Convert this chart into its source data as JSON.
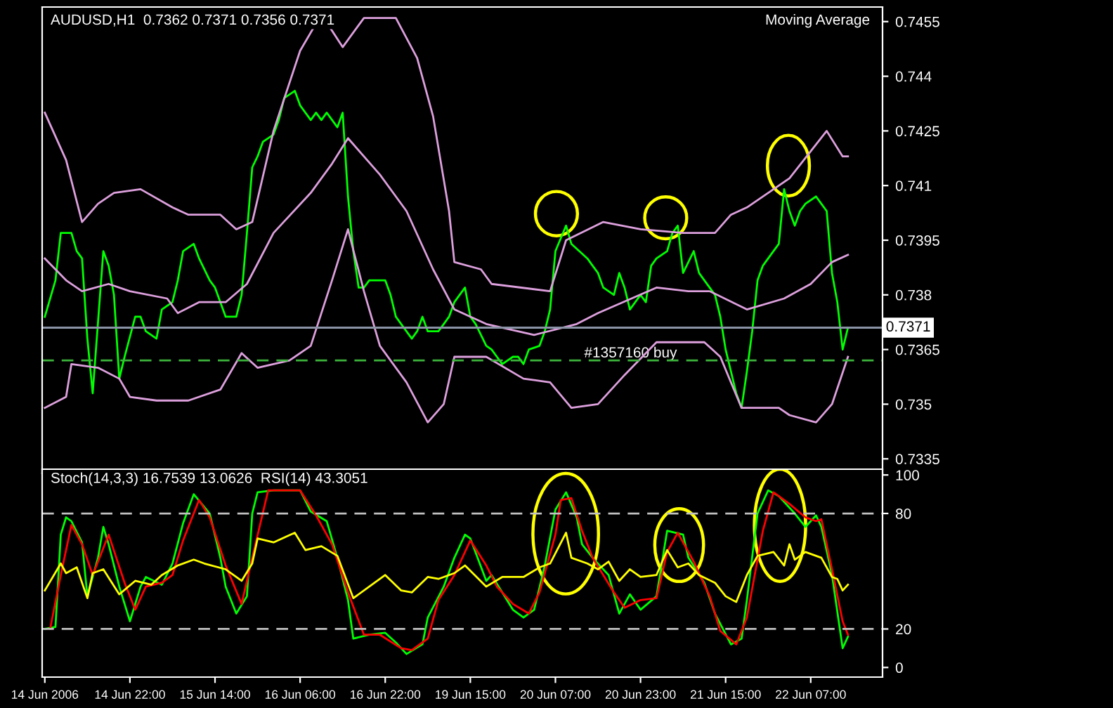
{
  "chart_data": [
    {
      "type": "line",
      "title": "AUDUSD,H1  0.7362 0.7371 0.7356 0.7371",
      "annotations": [
        "Moving Average"
      ],
      "ylim": [
        0.7331,
        0.7459
      ],
      "yticks": [
        0.7335,
        0.735,
        0.7365,
        0.738,
        0.7395,
        0.741,
        0.7425,
        0.744,
        0.7455
      ],
      "tick_labels": "y",
      "grid": false,
      "legend": false,
      "ref_lines": [
        {
          "axis": "y",
          "value": 0.7371,
          "label": "0.7371",
          "color": "#8a94a6",
          "line_style": "solid"
        },
        {
          "axis": "y",
          "value": 0.7362,
          "label": "#1357160 buy",
          "color": "#3cb43c",
          "line_style": "dashed"
        }
      ],
      "series": [
        {
          "color": "#00ff00",
          "values": [
            0.7374,
            null,
            0.7384,
            0.7397,
            null,
            0.7397,
            0.7392,
            0.739,
            0.7368,
            0.7353,
            null,
            0.7392,
            0.7388,
            0.738,
            0.7357,
            0.7363,
            null,
            0.7374,
            0.7374,
            0.737,
            null,
            0.7368,
            0.7376,
            null,
            0.7378,
            0.7384,
            0.7392,
            null,
            0.7394,
            0.739,
            null,
            0.7384,
            0.7382,
            0.7378,
            0.7374,
            null,
            0.7374,
            0.738,
            0.7397,
            0.7415,
            0.7418,
            0.7422,
            null,
            0.7424,
            0.7428,
            0.7434,
            null,
            0.7436,
            0.7432,
            null,
            0.7428,
            0.743,
            0.7428,
            0.743,
            null,
            0.7426,
            0.743,
            0.7407,
            0.7392,
            0.7382,
            0.7382,
            0.7384,
            0.7384,
            null,
            0.7384,
            0.738,
            0.7374,
            0.7372,
            null,
            0.7368,
            0.737,
            0.7374,
            0.737,
            null,
            0.737,
            0.7372,
            0.7374,
            0.7378,
            null,
            0.7382,
            0.7374,
            0.7372,
            null,
            0.7366,
            0.7365,
            0.7363,
            0.7361,
            null,
            0.7363,
            0.7363,
            0.7361,
            0.7365,
            null,
            0.7366,
            0.737,
            0.7376,
            0.7392,
            null,
            0.7399,
            0.7394,
            null,
            null,
            0.739,
            0.7388,
            0.7386,
            0.7382,
            null,
            0.738,
            0.7386,
            0.7382,
            0.7376,
            null,
            0.738,
            0.7378,
            0.7388,
            0.739,
            null,
            0.7392,
            0.7397,
            0.7399,
            0.7386,
            null,
            0.7392,
            0.7386,
            0.7384,
            null,
            0.738,
            0.7374,
            0.7365,
            0.7359,
            0.7353,
            0.7349,
            0.7359,
            0.737,
            0.7384,
            0.7388,
            0.739,
            null,
            0.7394,
            0.7409,
            0.7403,
            0.7399,
            0.7403,
            0.7405,
            null,
            0.7407,
            0.7405,
            0.7403,
            0.7386,
            0.7378,
            0.7365,
            0.7371
          ]
        },
        {
          "color": "#dda0dd",
          "values": [
            0.743,
            null,
            null,
            null,
            0.7417,
            null,
            null,
            0.74,
            null,
            null,
            0.7405,
            null,
            null,
            0.7408,
            null,
            null,
            null,
            null,
            0.7409,
            null,
            null,
            null,
            null,
            null,
            0.7404,
            null,
            null,
            0.7402,
            null,
            null,
            null,
            null,
            null,
            0.7402,
            null,
            null,
            0.7398,
            null,
            null,
            0.74,
            null,
            null,
            null,
            0.7425,
            null,
            null,
            null,
            null,
            0.7447,
            null,
            null,
            null,
            0.7457,
            null,
            null,
            null,
            0.7448,
            null,
            null,
            null,
            0.7456,
            null,
            null,
            null,
            null,
            null,
            0.7456,
            null,
            null,
            null,
            0.7445,
            null,
            null,
            0.7429,
            null,
            null,
            0.7403,
            0.7389,
            null,
            null,
            null,
            null,
            0.7387,
            null,
            0.7383,
            null,
            null,
            null,
            null,
            null,
            null,
            null,
            null,
            null,
            null,
            0.7381,
            null,
            null,
            0.7395,
            null,
            null,
            null,
            null,
            null,
            null,
            0.74,
            null,
            null,
            null,
            null,
            null,
            null,
            0.7398,
            null,
            null,
            null,
            null,
            null,
            null,
            null,
            0.7397,
            null,
            null,
            null,
            null,
            null,
            0.7397,
            null,
            null,
            0.7402,
            null,
            null,
            0.7404,
            null,
            null,
            null,
            0.7408,
            null,
            null,
            null,
            0.7412,
            null,
            null,
            null,
            null,
            null,
            null,
            0.7425,
            null,
            null,
            0.7418,
            0.7418
          ]
        },
        {
          "color": "#dda0dd",
          "values": [
            0.739,
            null,
            null,
            null,
            0.7384,
            null,
            null,
            0.7381,
            null,
            null,
            null,
            null,
            0.7383,
            null,
            null,
            null,
            0.7381,
            null,
            null,
            null,
            null,
            null,
            null,
            0.7379,
            null,
            0.7375,
            null,
            null,
            null,
            0.7378,
            null,
            null,
            null,
            null,
            0.7378,
            null,
            null,
            null,
            0.7383,
            null,
            null,
            null,
            null,
            0.7397,
            null,
            null,
            null,
            null,
            null,
            null,
            0.7408,
            null,
            null,
            null,
            0.7416,
            null,
            null,
            0.7423,
            null,
            null,
            null,
            null,
            null,
            0.7413,
            null,
            null,
            null,
            null,
            0.7403,
            null,
            null,
            null,
            null,
            0.7387,
            null,
            null,
            null,
            0.7376,
            null,
            null,
            null,
            null,
            null,
            0.7372,
            null,
            null,
            null,
            null,
            null,
            null,
            null,
            null,
            0.7369,
            null,
            null,
            null,
            null,
            null,
            null,
            null,
            0.7372,
            null,
            null,
            null,
            0.7375,
            null,
            null,
            null,
            null,
            null,
            null,
            null,
            null,
            null,
            null,
            0.7382,
            null,
            null,
            null,
            null,
            null,
            0.7381,
            null,
            null,
            null,
            0.7381,
            null,
            null,
            null,
            null,
            null,
            null,
            0.7376,
            null,
            null,
            null,
            null,
            null,
            null,
            0.7379,
            null,
            null,
            null,
            null,
            0.7383,
            null,
            null,
            null,
            0.7389,
            null,
            null,
            0.7391
          ]
        },
        {
          "color": "#dda0dd",
          "values": [
            0.7349,
            null,
            null,
            null,
            0.7352,
            0.7361,
            null,
            null,
            null,
            null,
            0.736,
            null,
            null,
            null,
            0.7357,
            null,
            0.7352,
            null,
            null,
            null,
            null,
            0.7351,
            null,
            null,
            null,
            null,
            null,
            0.7351,
            null,
            null,
            null,
            null,
            null,
            0.7354,
            null,
            null,
            null,
            0.7364,
            null,
            null,
            0.736,
            null,
            null,
            null,
            null,
            null,
            0.7362,
            null,
            null,
            null,
            0.7366,
            null,
            null,
            null,
            0.7384,
            null,
            null,
            0.7398,
            null,
            null,
            0.7381,
            null,
            null,
            0.7366,
            null,
            null,
            null,
            null,
            0.7356,
            null,
            null,
            null,
            0.7345,
            null,
            null,
            0.735,
            null,
            0.7363,
            null,
            null,
            null,
            null,
            null,
            0.7363,
            null,
            null,
            null,
            null,
            null,
            null,
            0.7357,
            null,
            null,
            null,
            null,
            0.7356,
            null,
            null,
            null,
            0.7349,
            null,
            null,
            null,
            null,
            0.735,
            null,
            null,
            null,
            null,
            0.7358,
            null,
            null,
            null,
            null,
            null,
            0.7367,
            null,
            null,
            null,
            null,
            null,
            null,
            null,
            null,
            0.7367,
            null,
            null,
            0.7363,
            null,
            null,
            null,
            0.7349,
            null,
            null,
            null,
            null,
            null,
            null,
            0.7349,
            null,
            0.7347,
            null,
            null,
            null,
            null,
            0.7345,
            null,
            null,
            0.735,
            null,
            null,
            0.7363
          ]
        }
      ]
    },
    {
      "type": "line",
      "title": "Stoch(14,3,3) 16.7539 13.0626  RSI(14) 43.3051",
      "ylim": [
        -5,
        103
      ],
      "yticks": [
        0,
        20,
        80,
        100
      ],
      "grid": false,
      "legend": false,
      "categories": [
        "14 Jun 2006",
        null,
        null,
        null,
        null,
        null,
        null,
        null,
        null,
        null,
        null,
        null,
        null,
        null,
        null,
        null,
        "14 Jun 22:00",
        null,
        null,
        null,
        null,
        null,
        null,
        null,
        null,
        null,
        null,
        null,
        null,
        null,
        null,
        null,
        "15 Jun 14:00",
        null,
        null,
        null,
        null,
        null,
        null,
        null,
        null,
        null,
        null,
        null,
        null,
        null,
        null,
        null,
        "16 Jun 06:00",
        null,
        null,
        null,
        null,
        null,
        null,
        null,
        null,
        null,
        null,
        null,
        null,
        null,
        null,
        null,
        "16 Jun 22:00",
        null,
        null,
        null,
        null,
        null,
        null,
        null,
        null,
        null,
        null,
        null,
        null,
        null,
        null,
        null,
        "19 Jun 15:00",
        null,
        null,
        null,
        null,
        null,
        null,
        null,
        null,
        null,
        null,
        null,
        null,
        null,
        null,
        null,
        "20 Jun 07:00",
        null,
        null,
        null,
        null,
        null,
        null,
        null,
        null,
        null,
        null,
        null,
        null,
        null,
        null,
        null,
        "20 Jun 23:00",
        null,
        null,
        null,
        null,
        null,
        null,
        null,
        null,
        null,
        null,
        null,
        null,
        null,
        null,
        null,
        "21 Jun 15:00",
        null,
        null,
        null,
        null,
        null,
        null,
        null,
        null,
        null,
        null,
        null,
        null,
        null,
        null,
        null,
        "22 Jun 07:00",
        null,
        null,
        null,
        null,
        null,
        null,
        null
      ],
      "ref_lines": [
        {
          "axis": "y",
          "value": 80,
          "color": "#c0c0c0",
          "line_style": "dashed"
        },
        {
          "axis": "y",
          "value": 20,
          "color": "#c0c0c0",
          "line_style": "dashed"
        }
      ],
      "series": [
        {
          "color": "#00ff00",
          "values": [
            20,
            null,
            21,
            69,
            78,
            76,
            null,
            65,
            37,
            null,
            57,
            73,
            64,
            null,
            42,
            null,
            24,
            null,
            42,
            47,
            null,
            null,
            43,
            null,
            54,
            null,
            75,
            null,
            90,
            null,
            null,
            80,
            null,
            57,
            42,
            null,
            28,
            null,
            37,
            80,
            91,
            null,
            null,
            92,
            null,
            null,
            null,
            null,
            92,
            null,
            81,
            null,
            null,
            76,
            null,
            57,
            null,
            35,
            15,
            null,
            null,
            17,
            null,
            null,
            18,
            null,
            13,
            null,
            7,
            null,
            null,
            12,
            26,
            null,
            null,
            42,
            null,
            57,
            null,
            69,
            67,
            null,
            null,
            45,
            48,
            null,
            null,
            null,
            30,
            null,
            26,
            null,
            30,
            null,
            53,
            null,
            82,
            null,
            91,
            null,
            78,
            64,
            null,
            57,
            null,
            null,
            48,
            null,
            28,
            null,
            38,
            null,
            30,
            null,
            null,
            37,
            null,
            71,
            null,
            null,
            69,
            57,
            null,
            null,
            44,
            null,
            28,
            null,
            null,
            12,
            null,
            15,
            35,
            null,
            80,
            null,
            92,
            null,
            89,
            null,
            null,
            80,
            null,
            73,
            null,
            79,
            73,
            null,
            48,
            null,
            10,
            16
          ]
        },
        {
          "color": "#ff0000",
          "values": [
            null,
            20,
            null,
            48,
            null,
            74,
            null,
            64,
            null,
            48,
            null,
            null,
            69,
            null,
            null,
            44,
            null,
            30,
            null,
            42,
            null,
            null,
            44,
            null,
            48,
            null,
            66,
            null,
            null,
            87,
            null,
            78,
            null,
            null,
            53,
            null,
            null,
            33,
            null,
            57,
            null,
            null,
            92,
            null,
            null,
            null,
            null,
            null,
            92,
            null,
            null,
            79,
            null,
            null,
            64,
            null,
            null,
            39,
            null,
            null,
            17,
            null,
            null,
            17,
            null,
            null,
            null,
            10,
            null,
            9,
            null,
            null,
            15,
            null,
            35,
            null,
            null,
            48,
            null,
            null,
            66,
            null,
            null,
            53,
            null,
            42,
            null,
            null,
            33,
            null,
            null,
            28,
            null,
            39,
            null,
            null,
            69,
            87,
            null,
            88,
            null,
            71,
            null,
            57,
            null,
            null,
            null,
            39,
            null,
            31,
            null,
            null,
            35,
            null,
            null,
            36,
            null,
            60,
            null,
            70,
            null,
            null,
            55,
            null,
            null,
            37,
            null,
            19,
            null,
            null,
            12,
            null,
            26,
            null,
            null,
            71,
            null,
            91,
            null,
            null,
            85,
            null,
            null,
            78,
            null,
            76,
            77,
            null,
            51,
            null,
            24,
            17
          ]
        },
        {
          "color": "#ffff00",
          "values": [
            40,
            null,
            null,
            54,
            49,
            null,
            52,
            null,
            36,
            49,
            null,
            51,
            null,
            null,
            38,
            null,
            null,
            45,
            null,
            null,
            43,
            null,
            48,
            null,
            null,
            53,
            null,
            null,
            56,
            null,
            54,
            null,
            null,
            null,
            51,
            null,
            null,
            45,
            null,
            54,
            67,
            null,
            null,
            65,
            null,
            null,
            null,
            70,
            null,
            61,
            null,
            null,
            63,
            null,
            null,
            58,
            null,
            null,
            36,
            null,
            null,
            42,
            null,
            null,
            48,
            null,
            null,
            40,
            null,
            39,
            null,
            null,
            47,
            null,
            46,
            null,
            null,
            49,
            null,
            53,
            null,
            null,
            null,
            42,
            null,
            null,
            47,
            null,
            null,
            null,
            47,
            null,
            null,
            52,
            null,
            54,
            null,
            null,
            70,
            57,
            null,
            null,
            54,
            null,
            51,
            null,
            55,
            null,
            45,
            null,
            51,
            null,
            47,
            null,
            null,
            48,
            null,
            61,
            null,
            52,
            null,
            54,
            null,
            48,
            null,
            null,
            44,
            null,
            37,
            null,
            34,
            null,
            48,
            null,
            58,
            null,
            null,
            60,
            null,
            53,
            64,
            56,
            null,
            60,
            null,
            null,
            57,
            null,
            47,
            46,
            40,
            43
          ]
        }
      ]
    }
  ]
}
